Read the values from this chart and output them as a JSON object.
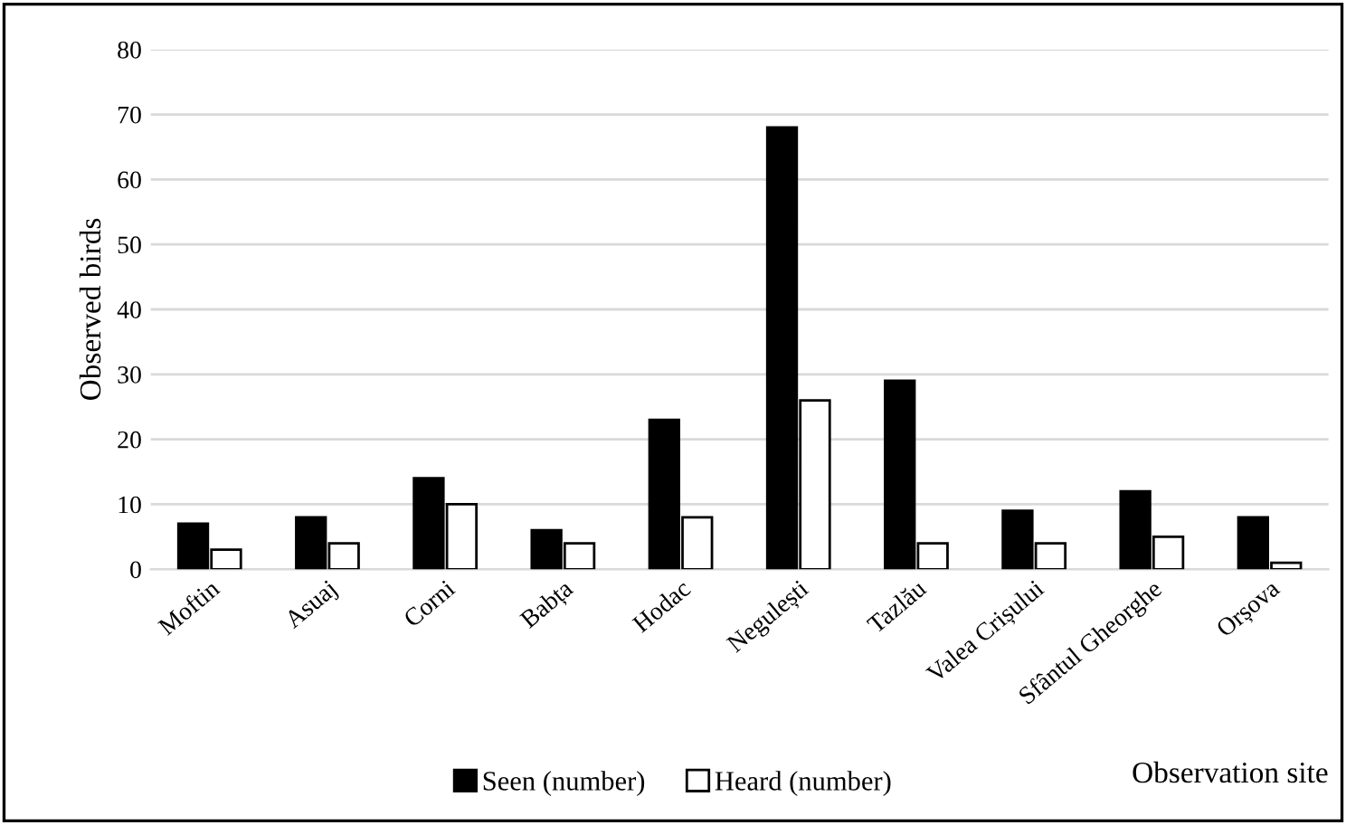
{
  "chart_data": {
    "type": "bar",
    "xlabel": "Observation site",
    "ylabel": "Observed birds",
    "categories": [
      "Moftin",
      "Asuaj",
      "Corni",
      "Babța",
      "Hodac",
      "Negulești",
      "Tazlău",
      "Valea Crișului",
      "Sfântul Gheorghe",
      "Orșova"
    ],
    "series": [
      {
        "name": "Seen (number)",
        "color": "#000000",
        "values": [
          7,
          8,
          14,
          6,
          23,
          68,
          29,
          9,
          12,
          8
        ]
      },
      {
        "name": "Heard (number)",
        "color": "#ffffff",
        "values": [
          3,
          4,
          10,
          4,
          8,
          26,
          4,
          4,
          5,
          1
        ]
      }
    ],
    "ylim": [
      0,
      80
    ],
    "yticks": [
      0,
      10,
      20,
      30,
      40,
      50,
      60,
      70,
      80
    ],
    "grid": "y",
    "legend": "bottom"
  }
}
